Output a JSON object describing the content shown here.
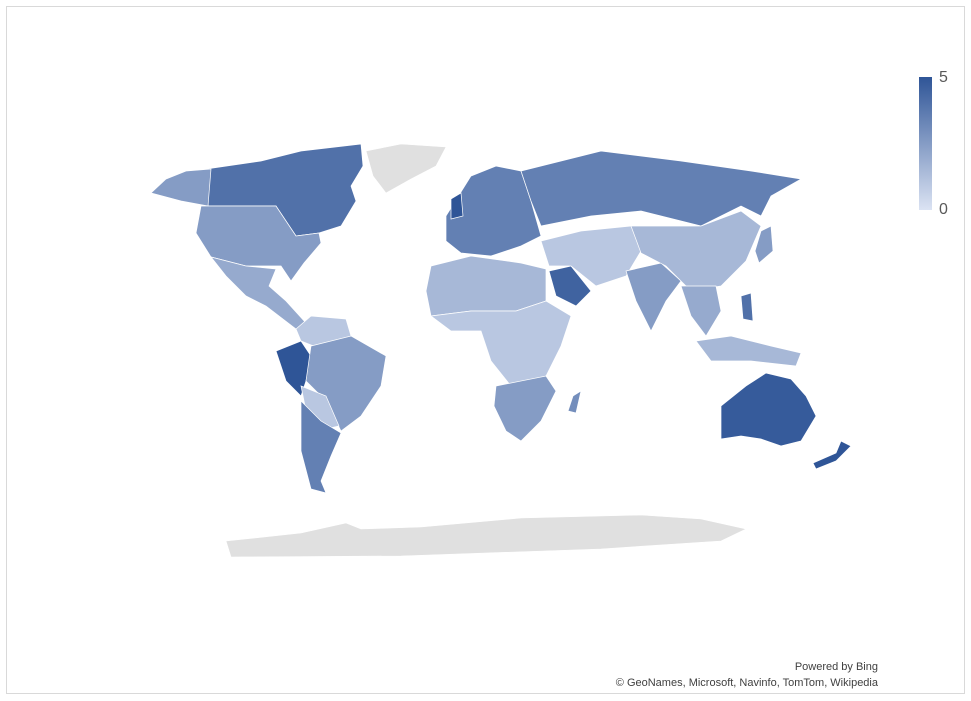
{
  "legend": {
    "max_label": "5",
    "min_label": "0",
    "color_min": "#dbe3f3",
    "color_max": "#2f5597",
    "no_data_color": "#e0e0e0"
  },
  "attribution": {
    "powered": "Powered by Bing",
    "sources": "© GeoNames, Microsoft, Navinfo, TomTom, Wikipedia"
  },
  "regions": [
    {
      "name": "Canada",
      "value": 4
    },
    {
      "name": "Alaska",
      "value": 2.5
    },
    {
      "name": "United States",
      "value": 2.5
    },
    {
      "name": "Mexico & Central America",
      "value": 2
    },
    {
      "name": "Colombia & Venezuela",
      "value": 1
    },
    {
      "name": "Peru & Ecuador",
      "value": 5
    },
    {
      "name": "Brazil",
      "value": 2.5
    },
    {
      "name": "Bolivia & Paraguay",
      "value": 1
    },
    {
      "name": "Argentina & Chile",
      "value": 3.5
    },
    {
      "name": "Europe",
      "value": 3.5
    },
    {
      "name": "United Kingdom",
      "value": 5
    },
    {
      "name": "Russia",
      "value": 3.5
    },
    {
      "name": "North Africa",
      "value": 1.5
    },
    {
      "name": "Central Africa",
      "value": 1
    },
    {
      "name": "Southern Africa",
      "value": 2.5
    },
    {
      "name": "Madagascar",
      "value": 3
    },
    {
      "name": "Saudi Arabia",
      "value": 4.5
    },
    {
      "name": "Middle East & Central Asia",
      "value": 1
    },
    {
      "name": "India",
      "value": 2.5
    },
    {
      "name": "China",
      "value": 1.5
    },
    {
      "name": "Southeast Asia",
      "value": 2
    },
    {
      "name": "Japan",
      "value": 2.5
    },
    {
      "name": "Philippines",
      "value": 4
    },
    {
      "name": "Indonesia",
      "value": 1.5
    },
    {
      "name": "Australia",
      "value": 4.8
    },
    {
      "name": "New Zealand",
      "value": 5
    }
  ]
}
